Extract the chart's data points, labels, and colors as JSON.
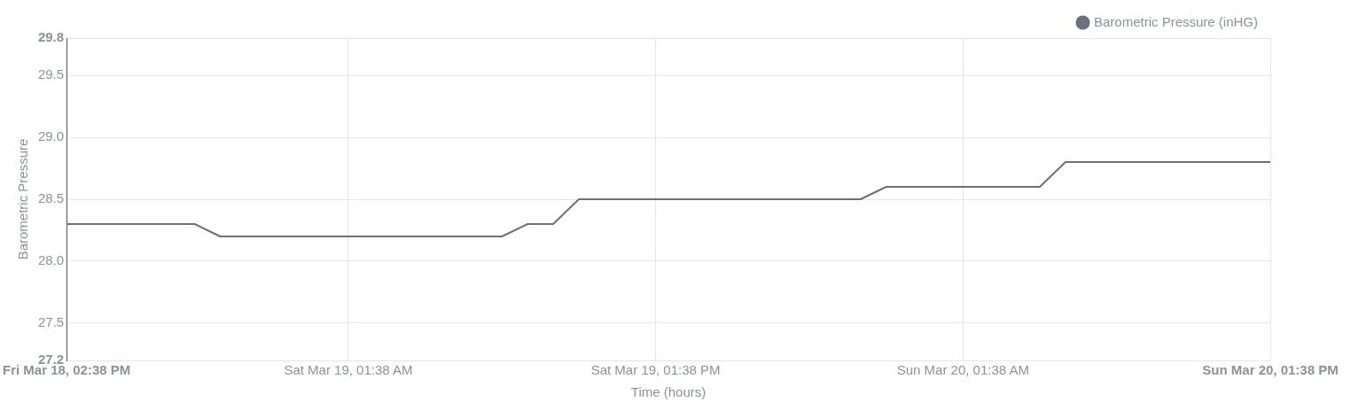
{
  "chart_data": {
    "type": "line",
    "xlabel": "Time (hours)",
    "ylabel": "Barometric Pressure",
    "legend": "top right",
    "grid": true,
    "marker": "none",
    "line_style": "solid",
    "x": [
      "--03-18T14:38",
      "--03-18T19:38",
      "--03-18T20:38",
      "--03-19T07:38",
      "--03-19T08:38",
      "--03-19T09:38",
      "--03-19T10:38",
      "--03-19T21:38",
      "--03-19T22:38",
      "--03-20T04:38",
      "--03-20T05:38",
      "--03-20T13:38"
    ],
    "series": [
      {
        "name": "Barometric Pressure (inHG)",
        "color": "#6b7079",
        "values": [
          28.3,
          28.3,
          28.2,
          28.2,
          28.3,
          28.3,
          28.5,
          28.5,
          28.6,
          28.6,
          28.8,
          28.8
        ]
      }
    ],
    "xlim": [
      "--03-18T14:38",
      "--03-20T13:38"
    ],
    "xticks": [
      {
        "value": "--03-18T14:38",
        "label": "Fri Mar 18, 02:38 PM"
      },
      {
        "value": "--03-19T01:38",
        "label": "Sat Mar 19, 01:38 AM"
      },
      {
        "value": "--03-19T13:38",
        "label": "Sat Mar 19, 01:38 PM"
      },
      {
        "value": "--03-20T01:38",
        "label": "Sun Mar 20, 01:38 AM"
      },
      {
        "value": "--03-20T13:38",
        "label": "Sun Mar 20, 01:38 PM"
      }
    ],
    "ylim": [
      27.2,
      29.8
    ],
    "yticks": [
      27.2,
      27.5,
      {
        "value": 28,
        "label": "28.0"
      },
      28.5,
      {
        "value": 29,
        "label": "29.0"
      },
      29.5,
      29.8
    ]
  }
}
